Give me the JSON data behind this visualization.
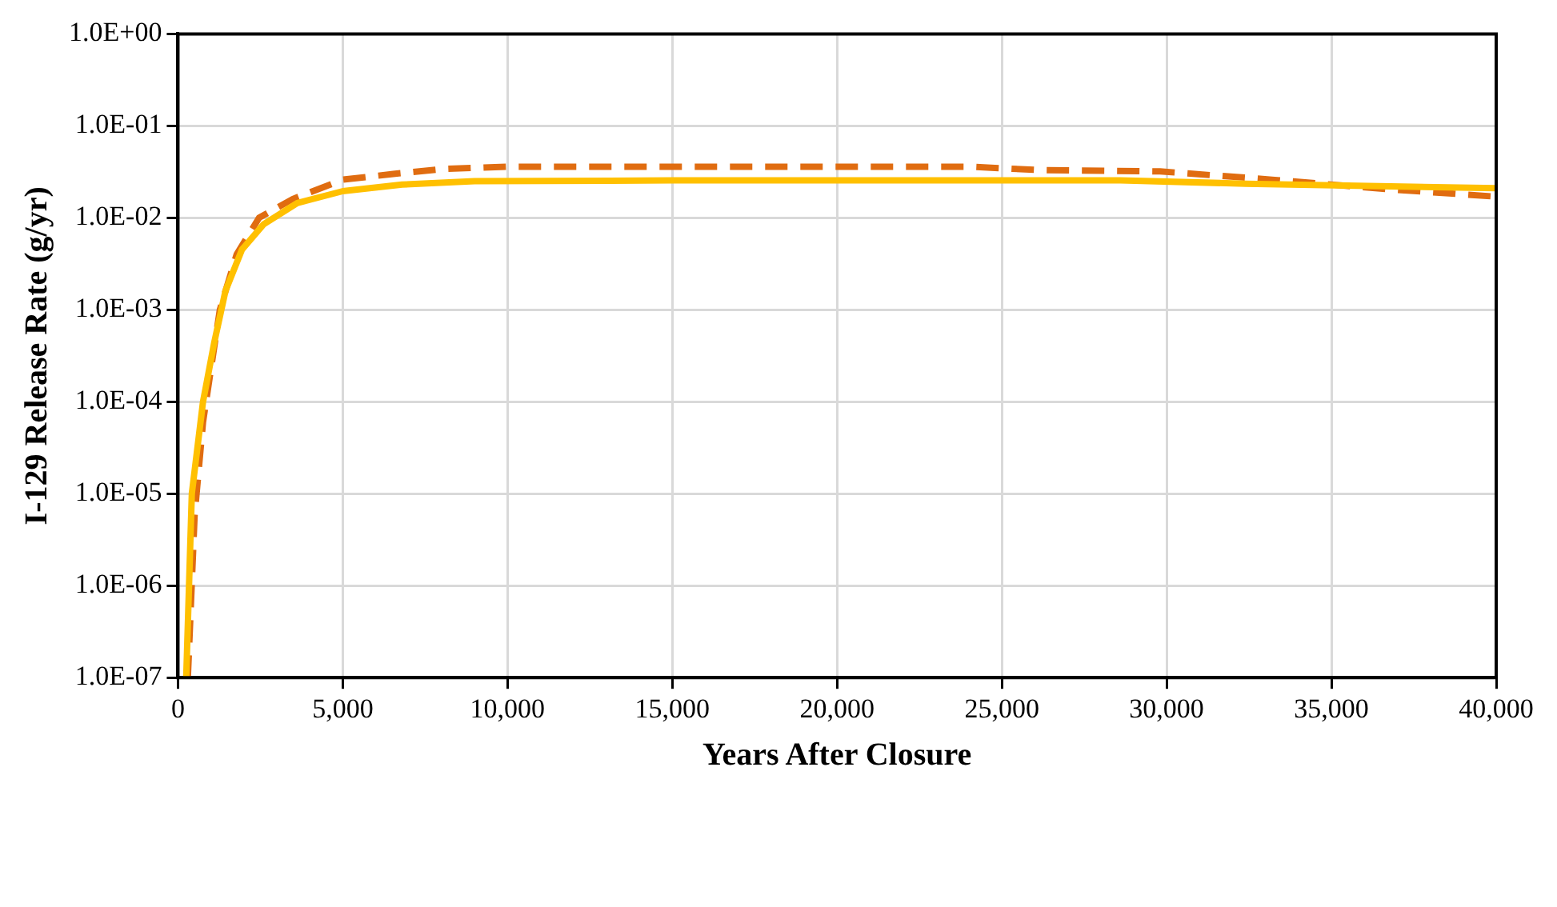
{
  "chart_data": {
    "type": "line",
    "xlabel": "Years After Closure",
    "ylabel": "I-129 Release Rate (g/yr)",
    "log": "y",
    "grid": true,
    "marker": "none",
    "xlim": [
      0,
      40000
    ],
    "ylim": [
      1e-07,
      1
    ],
    "xticks": [
      0,
      {
        "value": 5000,
        "label": "5,000"
      },
      {
        "value": 10000,
        "label": "10,000"
      },
      {
        "value": 15000,
        "label": "15,000"
      },
      {
        "value": 20000,
        "label": "20,000"
      },
      {
        "value": 25000,
        "label": "25,000"
      },
      {
        "value": 30000,
        "label": "30,000"
      },
      {
        "value": 35000,
        "label": "35,000"
      },
      {
        "value": 40000,
        "label": "40,000"
      }
    ],
    "yticks": [
      {
        "value": 1e-07,
        "label": "1.0E-07"
      },
      {
        "value": 1e-06,
        "label": "1.0E-06"
      },
      {
        "value": 1e-05,
        "label": "1.0E-05"
      },
      {
        "value": 0.0001,
        "label": "1.0E-04"
      },
      {
        "value": 0.001,
        "label": "1.0E-03"
      },
      {
        "value": 0.01,
        "label": "1.0E-02"
      },
      {
        "value": 0.1,
        "label": "1.0E-01"
      },
      {
        "value": 1,
        "label": "1.0E+00"
      }
    ],
    "series": [
      {
        "color": "#ffc000",
        "line_style": "solid",
        "x": [
          250,
          420,
          760,
          1100,
          1440,
          1940,
          2600,
          3620,
          5000,
          6800,
          9000,
          15000,
          20000,
          28600,
          32400,
          40000
        ],
        "values": [
          1e-07,
          1e-05,
          0.0001,
          0.00044,
          0.0016,
          0.0045,
          0.0085,
          0.0145,
          0.0195,
          0.023,
          0.025,
          0.0255,
          0.0255,
          0.0255,
          0.0235,
          0.021
        ]
      },
      {
        "color": "#e06c10",
        "line_style": "dashed",
        "x": [
          300,
          505,
          760,
          1270,
          1780,
          2460,
          3480,
          5000,
          6530,
          8050,
          10000,
          24000,
          26200,
          29800,
          33200,
          36700,
          40000
        ],
        "values": [
          1e-07,
          5.8e-06,
          6e-05,
          0.001,
          0.004,
          0.01,
          0.016,
          0.026,
          0.03,
          0.034,
          0.036,
          0.036,
          0.033,
          0.032,
          0.026,
          0.0205,
          0.017
        ]
      }
    ]
  }
}
